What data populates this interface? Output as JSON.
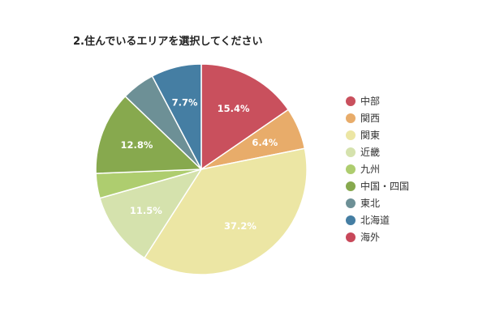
{
  "chart_data": {
    "type": "pie",
    "title": "2.住んでいるエリアを選択してください",
    "categories": [
      "中部",
      "関西",
      "関東",
      "近畿",
      "九州",
      "中国・四国",
      "東北",
      "北海道",
      "海外"
    ],
    "values": [
      15.4,
      6.4,
      37.2,
      11.5,
      3.8,
      12.8,
      5.1,
      7.7,
      0.0
    ],
    "data_labels": [
      "15.4%",
      "6.4%",
      "37.2%",
      "11.5%",
      "",
      "12.8%",
      "",
      "7.7%",
      ""
    ],
    "colors": [
      "#c9505d",
      "#e8ac6a",
      "#ece6a4",
      "#d5e2ad",
      "#aecd6f",
      "#87a94e",
      "#6d9096",
      "#457ea3",
      "#c8485a"
    ],
    "start_angle_deg": 0,
    "direction": "clockwise",
    "legend_position": "right"
  }
}
